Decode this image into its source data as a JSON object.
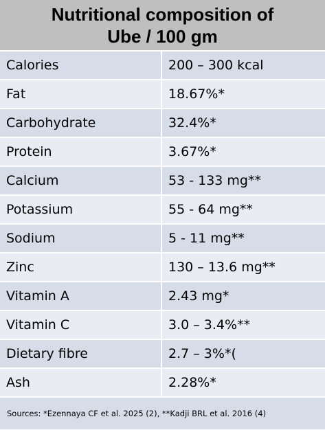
{
  "title": {
    "line1": "Nutritional composition of",
    "line2": "Ube / 100 gm"
  },
  "rows": [
    {
      "nutrient": "Calories",
      "value": "200 – 300 kcal"
    },
    {
      "nutrient": "Fat",
      "value": "18.67%*"
    },
    {
      "nutrient": "Carbohydrate",
      "value": "32.4%*"
    },
    {
      "nutrient": "Protein",
      "value": "3.67%*"
    },
    {
      "nutrient": "Calcium",
      "value": "53 - 133 mg**"
    },
    {
      "nutrient": "Potassium",
      "value": "55 - 64 mg**"
    },
    {
      "nutrient": "Sodium",
      "value": "5 - 11 mg**"
    },
    {
      "nutrient": "Zinc",
      "value": "130 – 13.6 mg**"
    },
    {
      "nutrient": "Vitamin A",
      "value": "2.43 mg*"
    },
    {
      "nutrient": "Vitamin C",
      "value": "3.0 – 3.4%**"
    },
    {
      "nutrient": "Dietary fibre",
      "value": "2.7 – 3%*("
    },
    {
      "nutrient": "Ash",
      "value": "2.28%*"
    }
  ],
  "sources": "Sources: *Ezennaya CF et al. 2025 (2), **Kadji BRL et al. 2016 (4)",
  "colors": {
    "header_bg": "#bfbfbf",
    "row_dark": "#d6dce8",
    "row_light": "#e9ecf3"
  }
}
